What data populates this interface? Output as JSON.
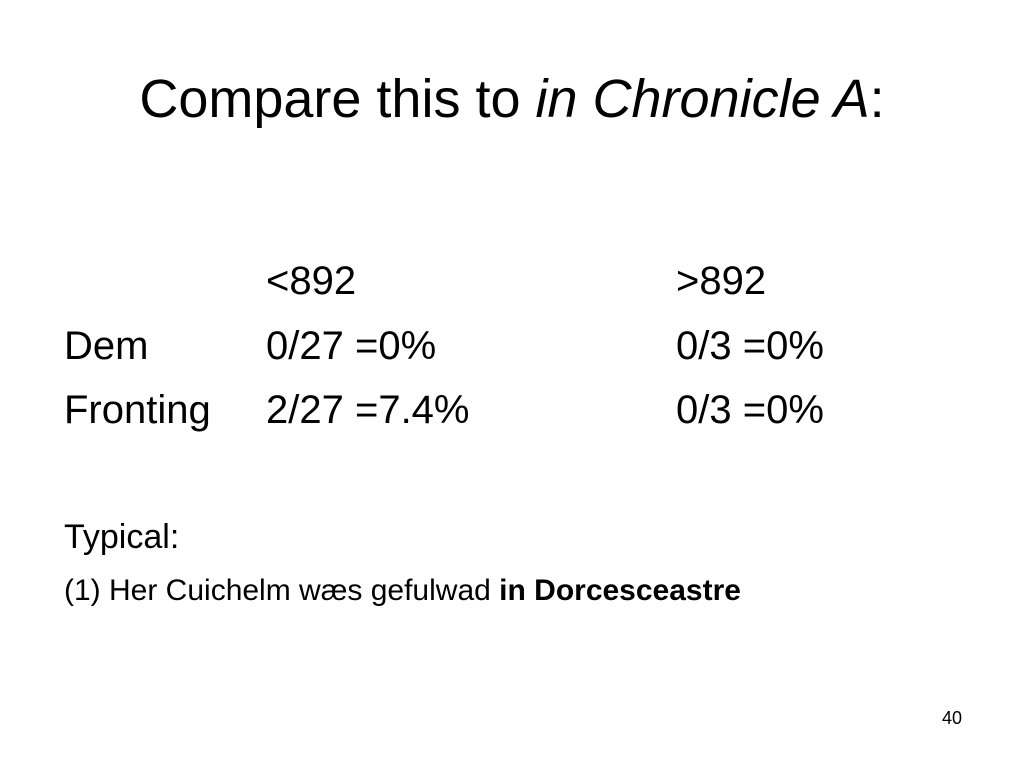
{
  "title": {
    "prefix": "Compare this to ",
    "italic": "in Chronicle A",
    "suffix": ":"
  },
  "table": {
    "headers": [
      "",
      "<892",
      ">892"
    ],
    "rows": [
      {
        "label": "Dem",
        "before": "0/27 =0%",
        "after": "0/3 =0%"
      },
      {
        "label": "Fronting",
        "before": "2/27 =7.4%",
        "after": "0/3 =0%"
      }
    ]
  },
  "typical_label": "Typical:",
  "example": {
    "prefix": "(1) Her Cuichelm wæs gefulwad ",
    "bold": "in Dorcesceastre"
  },
  "slide_number": "40"
}
